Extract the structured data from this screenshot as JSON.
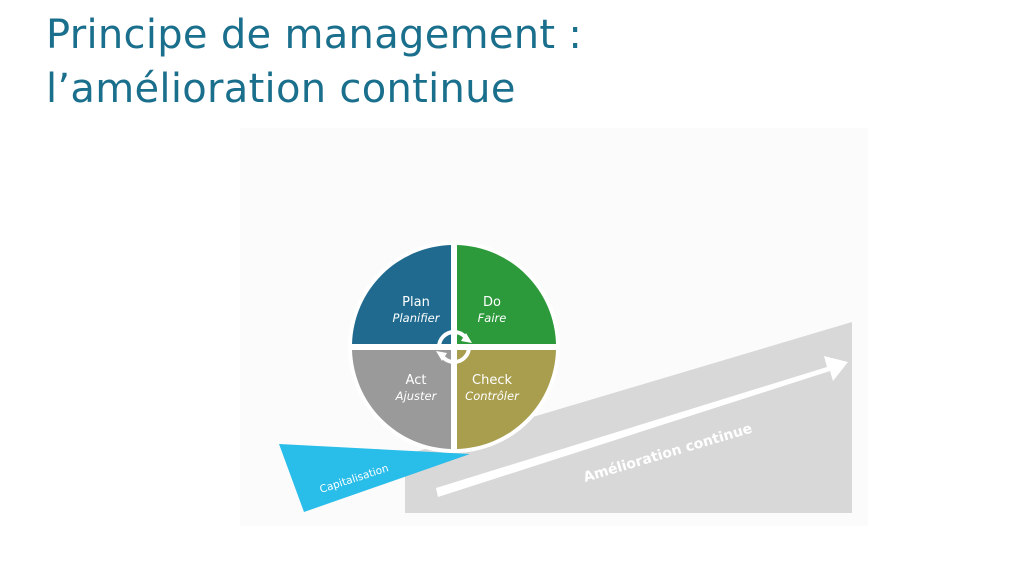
{
  "title": {
    "line1": "Principe de management :",
    "line2": "l’amélioration continue"
  },
  "pdca": {
    "plan": {
      "label": "Plan",
      "sublabel": "Planifier",
      "color": "#1f6a8e"
    },
    "do": {
      "label": "Do",
      "sublabel": "Faire",
      "color": "#2c9a3b"
    },
    "act": {
      "label": "Act",
      "sublabel": "Ajuster",
      "color": "#9a9a9a"
    },
    "check": {
      "label": "Check",
      "sublabel": "Contrôler",
      "color": "#a89e4e"
    }
  },
  "ramp": {
    "capitalisation_label": "Capitalisation",
    "capitalisation_color": "#29bde9",
    "amelioration_label": "Amélioration continue",
    "ramp_color": "#d8d8d8"
  }
}
